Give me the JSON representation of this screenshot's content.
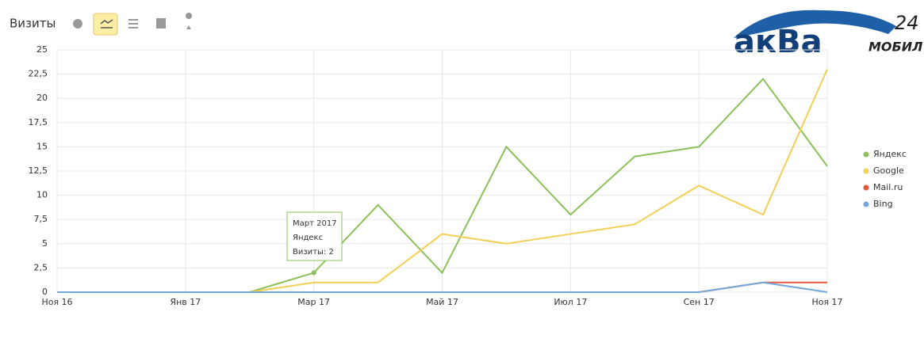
{
  "header": {
    "title": "Визиты"
  },
  "logo": {
    "word": "акВа",
    "sub": "МОБИЛ",
    "number": "24"
  },
  "chart_data": {
    "type": "line",
    "categories": [
      "Ноя 16",
      null,
      "Янв 17",
      null,
      "Мар 17",
      null,
      "Май 17",
      null,
      "Июл 17",
      null,
      "Сен 17",
      null,
      "Ноя 17"
    ],
    "series": [
      {
        "name": "Яндекс",
        "color": "#8cc05a",
        "values": [
          0,
          0,
          0,
          0,
          2,
          9,
          2,
          15,
          8,
          14,
          15,
          22,
          13
        ]
      },
      {
        "name": "Google",
        "color": "#f2cf55",
        "values": [
          0,
          0,
          0,
          0,
          1,
          1,
          6,
          5,
          6,
          7,
          11,
          8,
          23
        ]
      },
      {
        "name": "Mail.ru",
        "color": "#e5583a",
        "values": [
          0,
          0,
          0,
          0,
          0,
          0,
          0,
          0,
          0,
          0,
          0,
          1,
          1
        ]
      },
      {
        "name": "Bing",
        "color": "#72a8d8",
        "values": [
          0,
          0,
          0,
          0,
          0,
          0,
          0,
          0,
          0,
          0,
          0,
          1,
          0
        ]
      }
    ],
    "ylim": [
      0,
      25
    ],
    "yticks": [
      0,
      {
        "value": 2.5,
        "label": "2,5"
      },
      5,
      {
        "value": 7.5,
        "label": "7,5"
      },
      10,
      {
        "value": 12.5,
        "label": "12,5"
      },
      15,
      {
        "value": 17.5,
        "label": "17,5"
      },
      20,
      {
        "value": 22.5,
        "label": "22,5"
      },
      25
    ],
    "grid": true,
    "legend": "right",
    "tooltip": {
      "title": "Март 2017",
      "series": "Яндекс",
      "text": "Визиты: 2"
    }
  }
}
